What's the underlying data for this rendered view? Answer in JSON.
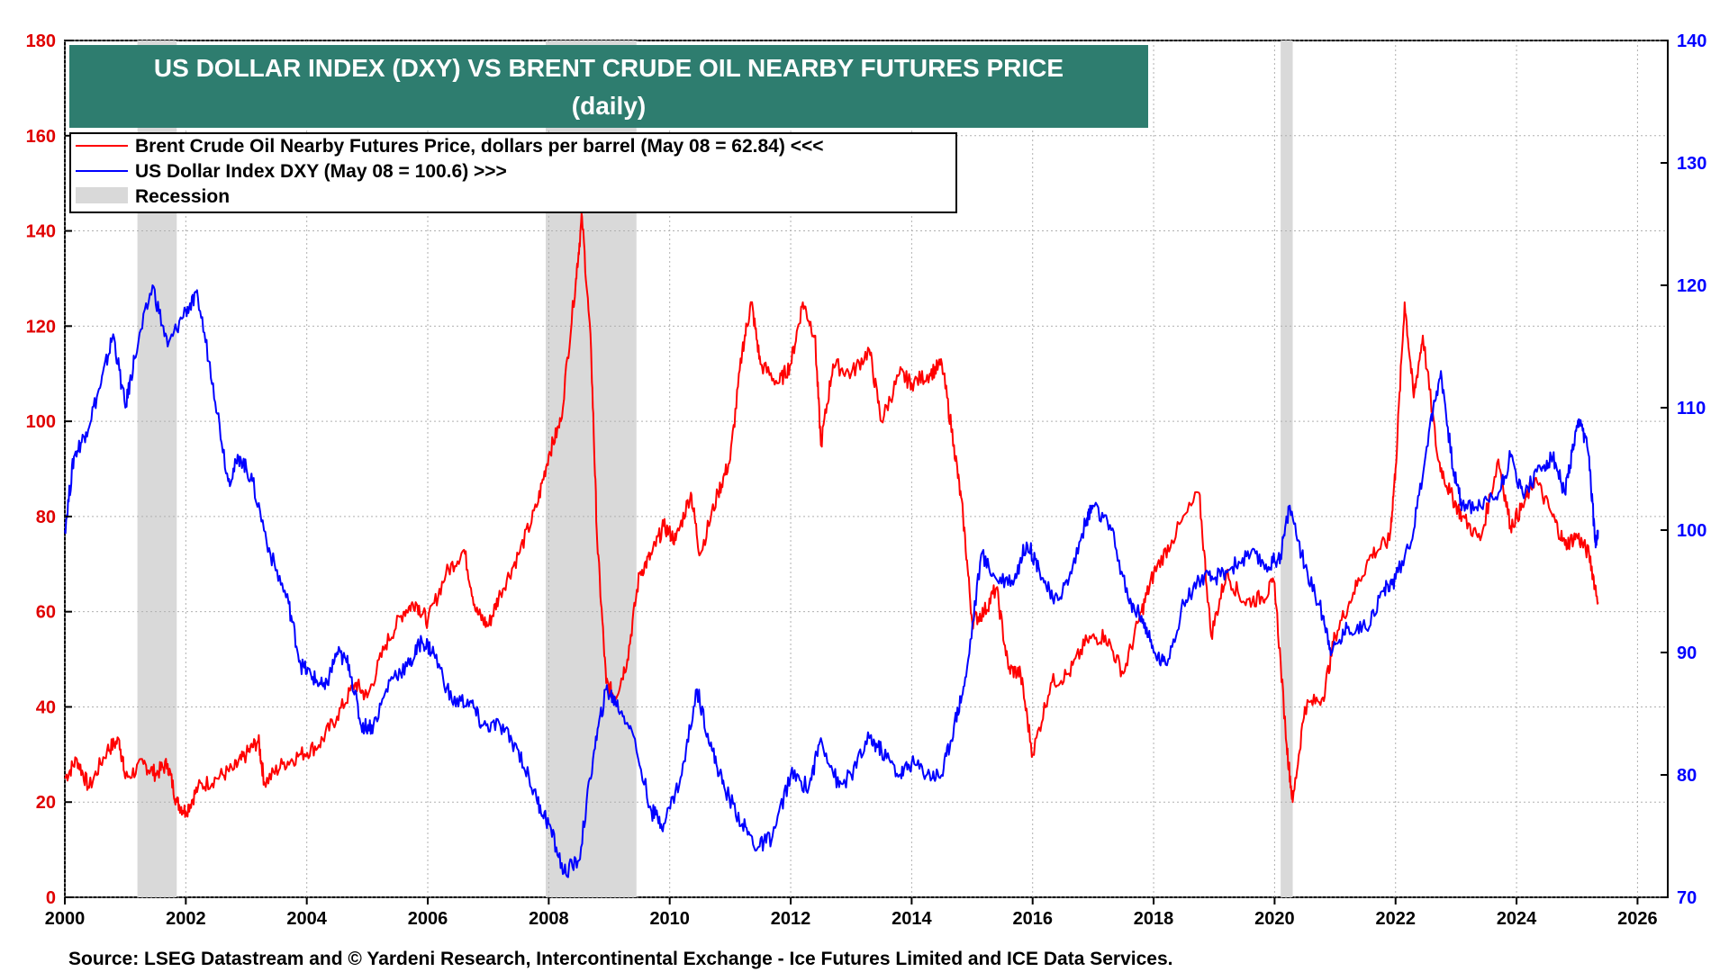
{
  "chart_data": {
    "type": "line",
    "title": "US DOLLAR INDEX (DXY) VS BRENT CRUDE OIL NEARBY FUTURES PRICE",
    "subtitle": "(daily)",
    "source": "Source: LSEG Datastream and © Yardeni Research, Intercontinental Exchange - Ice Futures Limited and ICE Data Services.",
    "x_ticks": [
      "2000",
      "2002",
      "2004",
      "2006",
      "2008",
      "2010",
      "2012",
      "2014",
      "2016",
      "2018",
      "2020",
      "2022",
      "2024",
      "2026"
    ],
    "x_range": [
      2000,
      2026.5
    ],
    "y_left": {
      "ticks": [
        "0",
        "20",
        "40",
        "60",
        "80",
        "100",
        "120",
        "140",
        "160",
        "180"
      ],
      "range": [
        0,
        180
      ],
      "color": "#e00000"
    },
    "y_right": {
      "ticks": [
        "70",
        "80",
        "90",
        "100",
        "110",
        "120",
        "130",
        "140"
      ],
      "range": [
        70,
        140
      ],
      "color": "#0000ff"
    },
    "legend": [
      {
        "label": "Brent Crude Oil Nearby Futures Price, dollars per barrel (May 08 = 62.84) <<<",
        "color": "#ff0000",
        "kind": "line"
      },
      {
        "label": "US Dollar Index DXY  (May 08 = 100.6) >>>",
        "color": "#0000ff",
        "kind": "line"
      },
      {
        "label": "Recession",
        "color": "#d9d9d9",
        "kind": "box"
      }
    ],
    "recessions": [
      [
        2001.2,
        2001.85
      ],
      [
        2007.95,
        2009.45
      ],
      [
        2020.1,
        2020.3
      ]
    ],
    "series": [
      {
        "name": "Brent Crude Oil",
        "axis": "left",
        "color": "#ff0000",
        "points": [
          [
            2000.0,
            25
          ],
          [
            2000.2,
            29
          ],
          [
            2000.4,
            23
          ],
          [
            2000.7,
            31
          ],
          [
            2000.9,
            33
          ],
          [
            2001.0,
            25
          ],
          [
            2001.3,
            28
          ],
          [
            2001.5,
            26
          ],
          [
            2001.7,
            28
          ],
          [
            2001.85,
            20
          ],
          [
            2002.0,
            18
          ],
          [
            2002.2,
            23
          ],
          [
            2002.5,
            25
          ],
          [
            2002.8,
            27
          ],
          [
            2003.0,
            30
          ],
          [
            2003.2,
            33
          ],
          [
            2003.3,
            24
          ],
          [
            2003.6,
            28
          ],
          [
            2003.9,
            30
          ],
          [
            2004.2,
            32
          ],
          [
            2004.5,
            38
          ],
          [
            2004.8,
            45
          ],
          [
            2005.0,
            42
          ],
          [
            2005.3,
            53
          ],
          [
            2005.6,
            60
          ],
          [
            2005.8,
            62
          ],
          [
            2006.0,
            58
          ],
          [
            2006.3,
            68
          ],
          [
            2006.6,
            73
          ],
          [
            2006.8,
            60
          ],
          [
            2007.0,
            57
          ],
          [
            2007.2,
            64
          ],
          [
            2007.5,
            72
          ],
          [
            2007.8,
            82
          ],
          [
            2008.0,
            93
          ],
          [
            2008.2,
            100
          ],
          [
            2008.45,
            130
          ],
          [
            2008.55,
            143
          ],
          [
            2008.7,
            115
          ],
          [
            2008.8,
            75
          ],
          [
            2008.95,
            45
          ],
          [
            2009.1,
            42
          ],
          [
            2009.3,
            50
          ],
          [
            2009.5,
            68
          ],
          [
            2009.7,
            72
          ],
          [
            2009.9,
            78
          ],
          [
            2010.1,
            75
          ],
          [
            2010.35,
            85
          ],
          [
            2010.5,
            72
          ],
          [
            2010.8,
            85
          ],
          [
            2011.0,
            92
          ],
          [
            2011.2,
            115
          ],
          [
            2011.35,
            125
          ],
          [
            2011.5,
            112
          ],
          [
            2011.8,
            108
          ],
          [
            2012.0,
            112
          ],
          [
            2012.2,
            125
          ],
          [
            2012.4,
            118
          ],
          [
            2012.5,
            95
          ],
          [
            2012.7,
            112
          ],
          [
            2013.0,
            110
          ],
          [
            2013.3,
            115
          ],
          [
            2013.5,
            100
          ],
          [
            2013.8,
            110
          ],
          [
            2014.0,
            108
          ],
          [
            2014.3,
            110
          ],
          [
            2014.5,
            112
          ],
          [
            2014.7,
            95
          ],
          [
            2014.85,
            80
          ],
          [
            2015.0,
            58
          ],
          [
            2015.2,
            60
          ],
          [
            2015.4,
            65
          ],
          [
            2015.6,
            48
          ],
          [
            2015.8,
            47
          ],
          [
            2016.0,
            30
          ],
          [
            2016.3,
            45
          ],
          [
            2016.6,
            47
          ],
          [
            2016.9,
            54
          ],
          [
            2017.2,
            55
          ],
          [
            2017.5,
            47
          ],
          [
            2017.8,
            60
          ],
          [
            2018.0,
            68
          ],
          [
            2018.3,
            75
          ],
          [
            2018.75,
            85
          ],
          [
            2018.95,
            55
          ],
          [
            2019.2,
            68
          ],
          [
            2019.5,
            62
          ],
          [
            2019.8,
            63
          ],
          [
            2020.0,
            66
          ],
          [
            2020.2,
            32
          ],
          [
            2020.3,
            20
          ],
          [
            2020.5,
            40
          ],
          [
            2020.8,
            42
          ],
          [
            2021.0,
            55
          ],
          [
            2021.3,
            64
          ],
          [
            2021.6,
            72
          ],
          [
            2021.9,
            75
          ],
          [
            2022.0,
            90
          ],
          [
            2022.15,
            125
          ],
          [
            2022.3,
            105
          ],
          [
            2022.45,
            118
          ],
          [
            2022.7,
            92
          ],
          [
            2022.9,
            85
          ],
          [
            2023.1,
            80
          ],
          [
            2023.4,
            75
          ],
          [
            2023.7,
            92
          ],
          [
            2023.9,
            78
          ],
          [
            2024.1,
            82
          ],
          [
            2024.3,
            88
          ],
          [
            2024.6,
            80
          ],
          [
            2024.8,
            74
          ],
          [
            2025.0,
            76
          ],
          [
            2025.2,
            72
          ],
          [
            2025.35,
            62
          ]
        ]
      },
      {
        "name": "US Dollar Index DXY",
        "axis": "right",
        "color": "#0000ff",
        "points": [
          [
            2000.0,
            100
          ],
          [
            2000.15,
            106
          ],
          [
            2000.35,
            108
          ],
          [
            2000.6,
            112
          ],
          [
            2000.8,
            116
          ],
          [
            2001.0,
            110
          ],
          [
            2001.15,
            114
          ],
          [
            2001.45,
            120
          ],
          [
            2001.7,
            115
          ],
          [
            2002.0,
            118
          ],
          [
            2002.2,
            119
          ],
          [
            2002.45,
            112
          ],
          [
            2002.7,
            104
          ],
          [
            2002.9,
            106
          ],
          [
            2003.1,
            104
          ],
          [
            2003.4,
            98
          ],
          [
            2003.7,
            94
          ],
          [
            2003.9,
            89
          ],
          [
            2004.1,
            88
          ],
          [
            2004.3,
            87
          ],
          [
            2004.5,
            90
          ],
          [
            2004.7,
            89
          ],
          [
            2004.9,
            84
          ],
          [
            2005.1,
            84
          ],
          [
            2005.4,
            88
          ],
          [
            2005.7,
            89
          ],
          [
            2005.9,
            91
          ],
          [
            2006.1,
            90
          ],
          [
            2006.4,
            86
          ],
          [
            2006.7,
            86
          ],
          [
            2006.9,
            84
          ],
          [
            2007.2,
            84
          ],
          [
            2007.5,
            82
          ],
          [
            2007.8,
            78
          ],
          [
            2008.0,
            76
          ],
          [
            2008.25,
            72
          ],
          [
            2008.5,
            73
          ],
          [
            2008.75,
            82
          ],
          [
            2008.95,
            87
          ],
          [
            2009.1,
            86
          ],
          [
            2009.35,
            84
          ],
          [
            2009.7,
            77
          ],
          [
            2009.9,
            76
          ],
          [
            2010.2,
            80
          ],
          [
            2010.45,
            87
          ],
          [
            2010.7,
            82
          ],
          [
            2010.9,
            79
          ],
          [
            2011.2,
            76
          ],
          [
            2011.45,
            74
          ],
          [
            2011.7,
            75
          ],
          [
            2012.0,
            80
          ],
          [
            2012.3,
            79
          ],
          [
            2012.5,
            83
          ],
          [
            2012.8,
            79
          ],
          [
            2013.0,
            80
          ],
          [
            2013.3,
            83
          ],
          [
            2013.5,
            82
          ],
          [
            2013.8,
            80
          ],
          [
            2014.0,
            81
          ],
          [
            2014.3,
            80
          ],
          [
            2014.5,
            80
          ],
          [
            2014.7,
            84
          ],
          [
            2014.9,
            88
          ],
          [
            2015.15,
            98
          ],
          [
            2015.4,
            96
          ],
          [
            2015.7,
            96
          ],
          [
            2015.9,
            99
          ],
          [
            2016.1,
            97
          ],
          [
            2016.35,
            94
          ],
          [
            2016.6,
            96
          ],
          [
            2016.9,
            101
          ],
          [
            2017.0,
            102
          ],
          [
            2017.3,
            100
          ],
          [
            2017.6,
            94
          ],
          [
            2017.8,
            93
          ],
          [
            2018.0,
            90
          ],
          [
            2018.2,
            89
          ],
          [
            2018.5,
            94
          ],
          [
            2018.75,
            96
          ],
          [
            2019.0,
            96
          ],
          [
            2019.3,
            97
          ],
          [
            2019.6,
            98
          ],
          [
            2019.9,
            97
          ],
          [
            2020.1,
            98
          ],
          [
            2020.25,
            102
          ],
          [
            2020.5,
            97
          ],
          [
            2020.8,
            93
          ],
          [
            2020.95,
            90
          ],
          [
            2021.2,
            92
          ],
          [
            2021.5,
            92
          ],
          [
            2021.8,
            95
          ],
          [
            2022.0,
            96
          ],
          [
            2022.3,
            100
          ],
          [
            2022.55,
            108
          ],
          [
            2022.75,
            113
          ],
          [
            2022.95,
            105
          ],
          [
            2023.1,
            102
          ],
          [
            2023.4,
            102
          ],
          [
            2023.7,
            103
          ],
          [
            2023.9,
            106
          ],
          [
            2024.1,
            103
          ],
          [
            2024.4,
            105
          ],
          [
            2024.6,
            106
          ],
          [
            2024.8,
            103
          ],
          [
            2024.95,
            107
          ],
          [
            2025.05,
            109
          ],
          [
            2025.2,
            106
          ],
          [
            2025.3,
            99
          ],
          [
            2025.35,
            100
          ]
        ]
      }
    ]
  }
}
